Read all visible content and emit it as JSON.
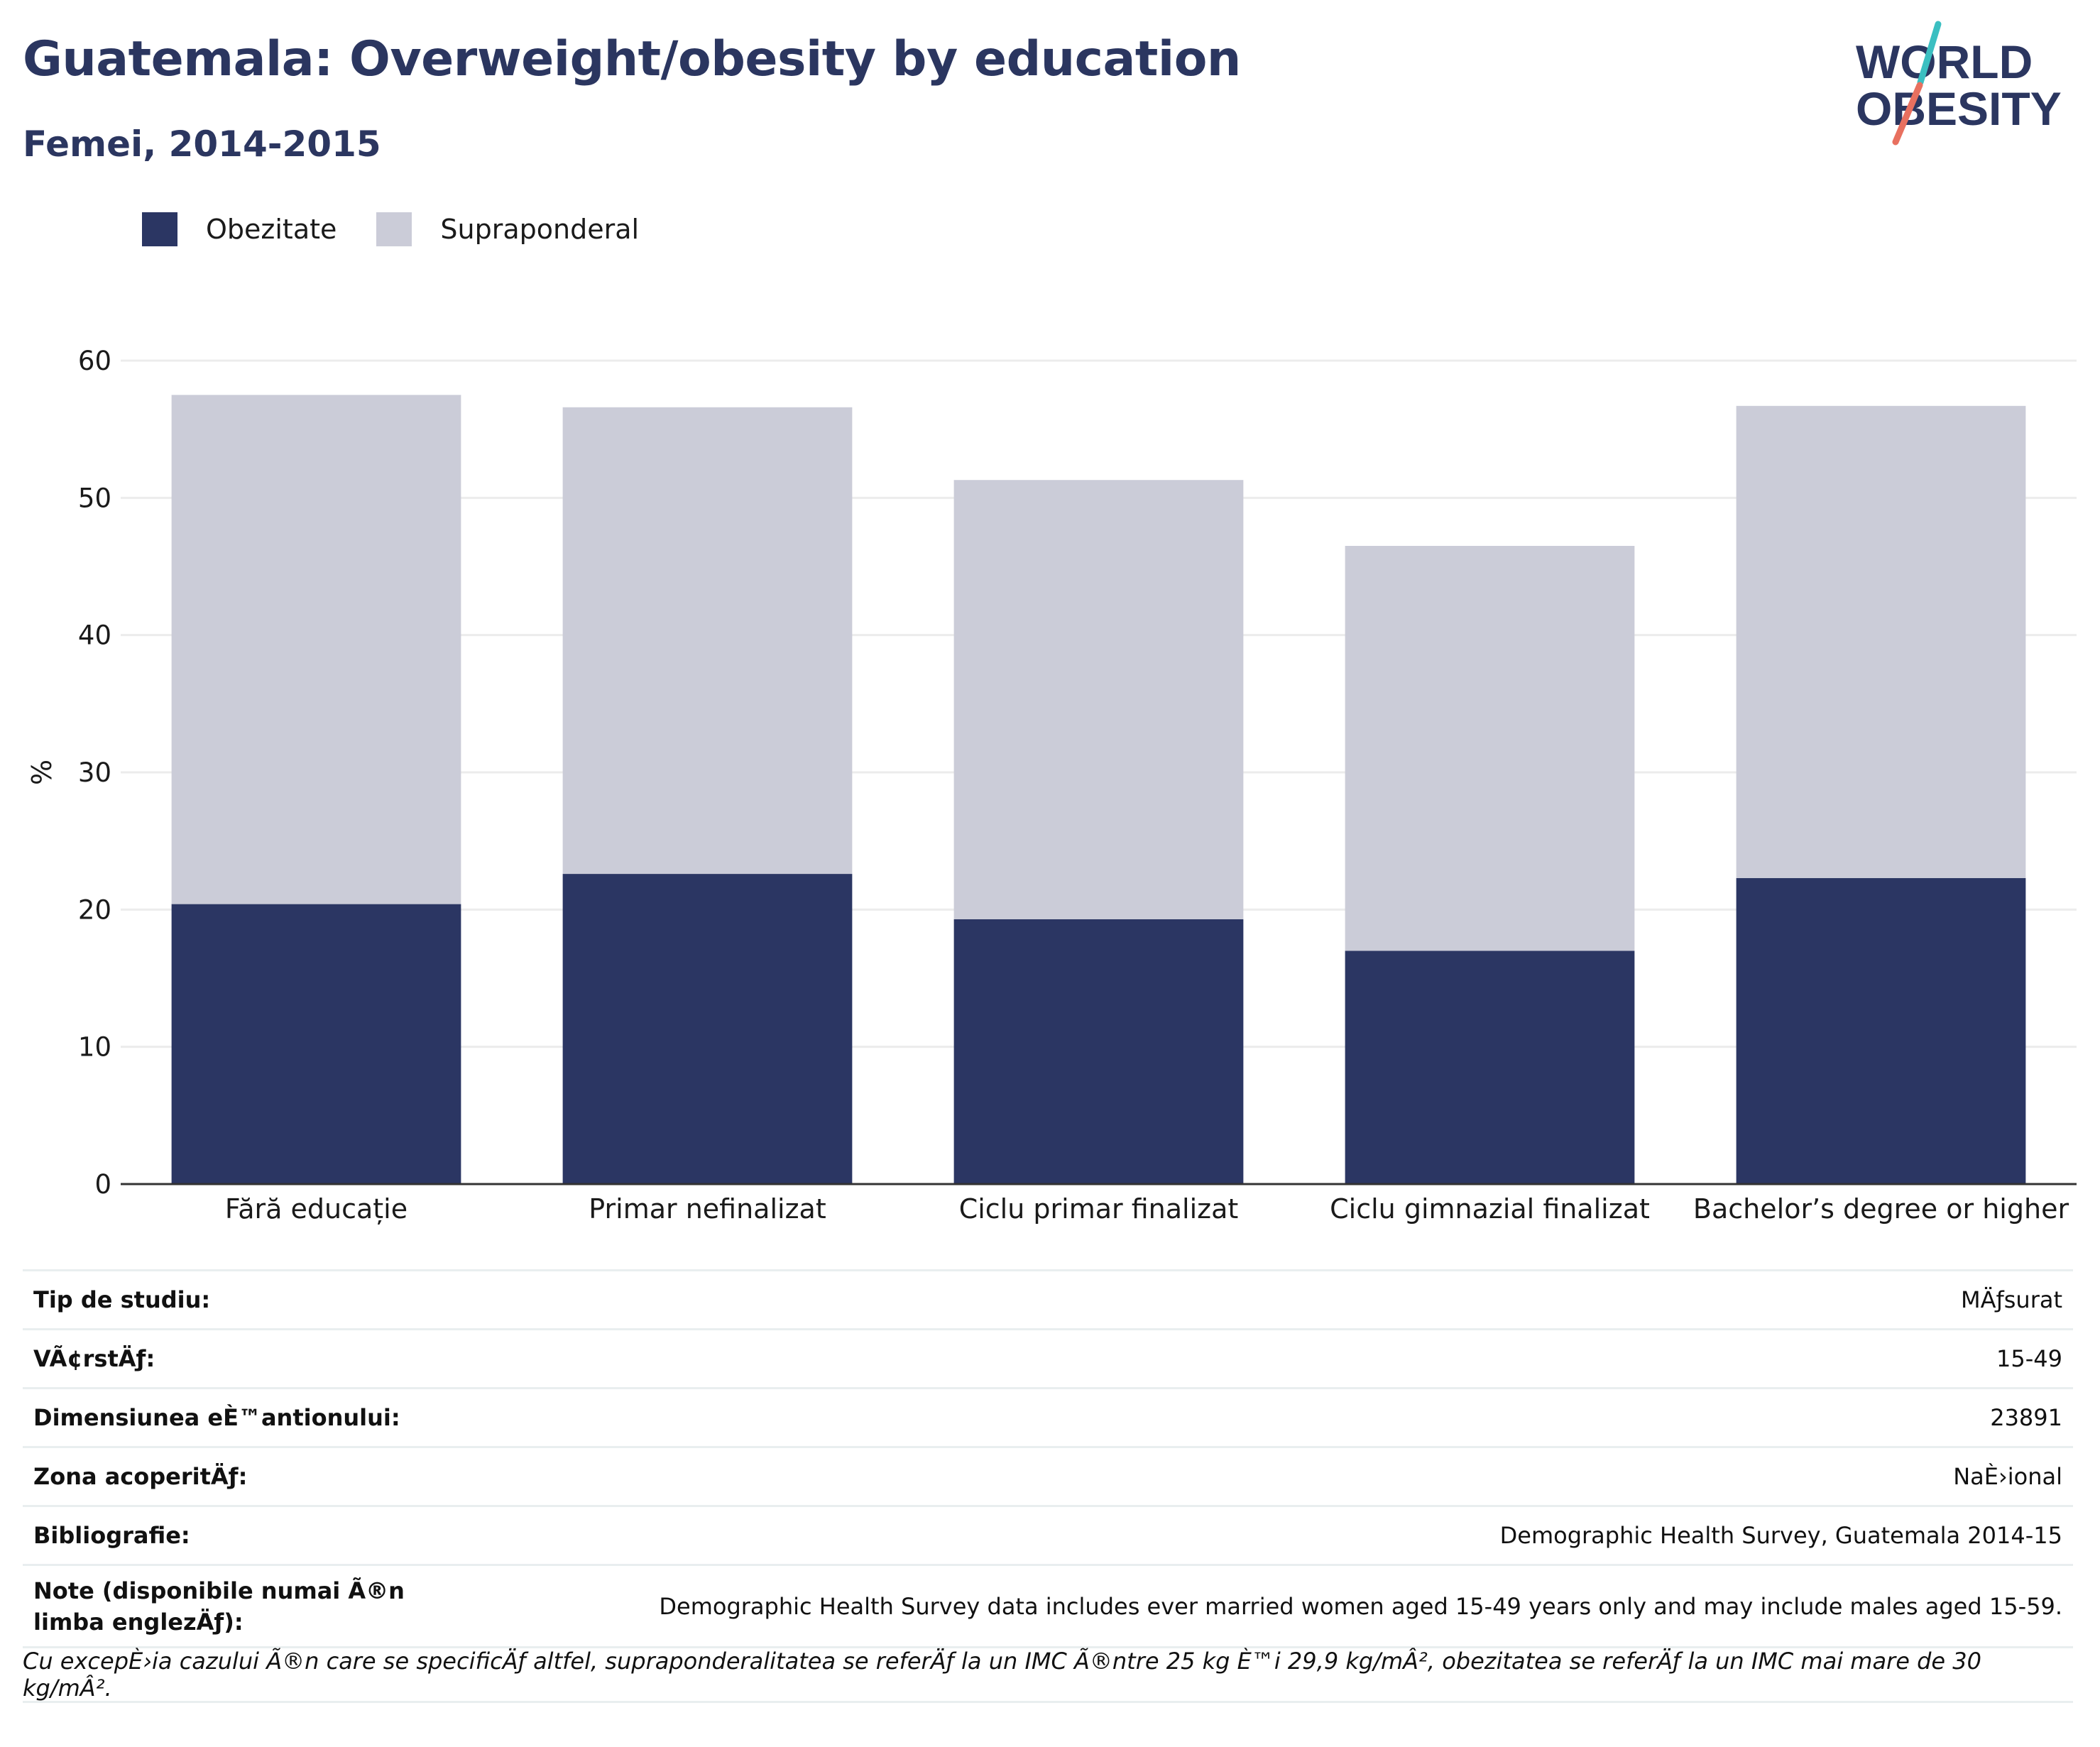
{
  "title": "Guatemala: Overweight/obesity by education",
  "subtitle": "Femei, 2014-2015",
  "logo": {
    "line1": "WORLD",
    "line2": "OBESITY"
  },
  "legend": {
    "obese_label": "Obezitate",
    "overweight_label": "Supraponderal"
  },
  "colors": {
    "obese": "#2b3663",
    "overweight": "#cbccd8",
    "title": "#2b3660",
    "grid": "#ececec",
    "logo_teal": "#3bbfc1",
    "logo_red": "#e8705f"
  },
  "chart_data": {
    "type": "bar",
    "stacked": true,
    "categories": [
      "Fără educație",
      "Primar nefinalizat",
      "Ciclu primar finalizat",
      "Ciclu gimnazial finalizat",
      "Bachelor’s degree or higher"
    ],
    "series": [
      {
        "name": "Obezitate",
        "values": [
          20.4,
          22.6,
          19.3,
          17.0,
          22.3
        ]
      },
      {
        "name": "Supraponderal",
        "values": [
          37.1,
          34.0,
          32.0,
          29.5,
          34.4
        ]
      }
    ],
    "ylabel": "%",
    "ylim": [
      0,
      60
    ],
    "yticks": [
      0,
      10,
      20,
      30,
      40,
      50,
      60
    ],
    "grid": true
  },
  "meta": {
    "rows": [
      {
        "label": "Tip de studiu:",
        "value": "MÄƒsurat"
      },
      {
        "label": "VÃ¢rstÄƒ:",
        "value": "15-49"
      },
      {
        "label": "Dimensiunea eÈ™antionului:",
        "value": "23891"
      },
      {
        "label": "Zona acoperitÄƒ:",
        "value": "NaÈ›ional"
      },
      {
        "label": "Bibliografie:",
        "value": "Demographic Health Survey, Guatemala 2014-15"
      },
      {
        "label": "Note (disponibile numai Ã®n limba englezÄƒ):",
        "value": "Demographic Health Survey data includes ever married women aged 15-49 years only and may include males aged 15-59."
      }
    ],
    "footnote": "Cu excepÈ›ia cazului Ã®n care se specificÄƒ altfel, supraponderalitatea se referÄƒ la un IMC Ã®ntre 25 kg È™i 29,9 kg/mÂ², obezitatea se referÄƒ la un IMC mai mare de 30 kg/mÂ²."
  }
}
